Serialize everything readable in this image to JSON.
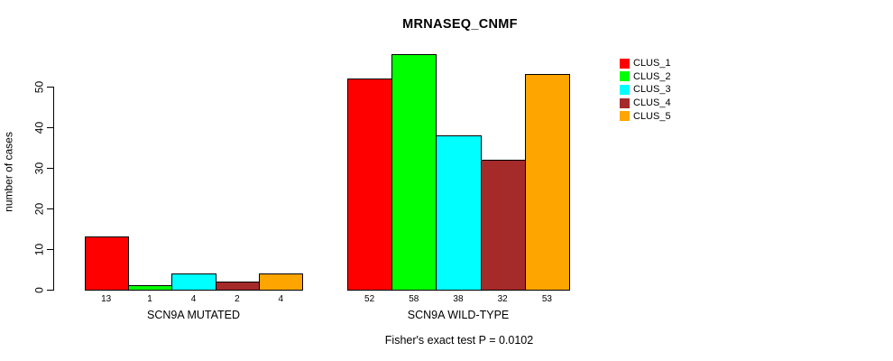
{
  "chart_data": {
    "type": "bar",
    "title": "MRNASEQ_CNMF",
    "xlabel": "",
    "ylabel": "number of cases",
    "categories": [
      "SCN9A MUTATED",
      "SCN9A WILD-TYPE"
    ],
    "series": [
      {
        "name": "CLUS_1",
        "color": "#FF0000",
        "values": [
          13,
          52
        ]
      },
      {
        "name": "CLUS_2",
        "color": "#00FF00",
        "values": [
          1,
          58
        ]
      },
      {
        "name": "CLUS_3",
        "color": "#00FFFF",
        "values": [
          4,
          38
        ]
      },
      {
        "name": "CLUS_4",
        "color": "#A52A2A",
        "values": [
          2,
          32
        ]
      },
      {
        "name": "CLUS_5",
        "color": "#FFA500",
        "values": [
          4,
          53
        ]
      }
    ],
    "yticks": [
      0,
      10,
      20,
      30,
      40,
      50
    ],
    "ylim": [
      0,
      58
    ],
    "bar_value_labels_shown": true,
    "grid": false,
    "legend_position": "right",
    "annotation": "Fisher's exact test P = 0.0102",
    "bar_border_color": "#000000",
    "background_color": "#FFFFFF"
  }
}
